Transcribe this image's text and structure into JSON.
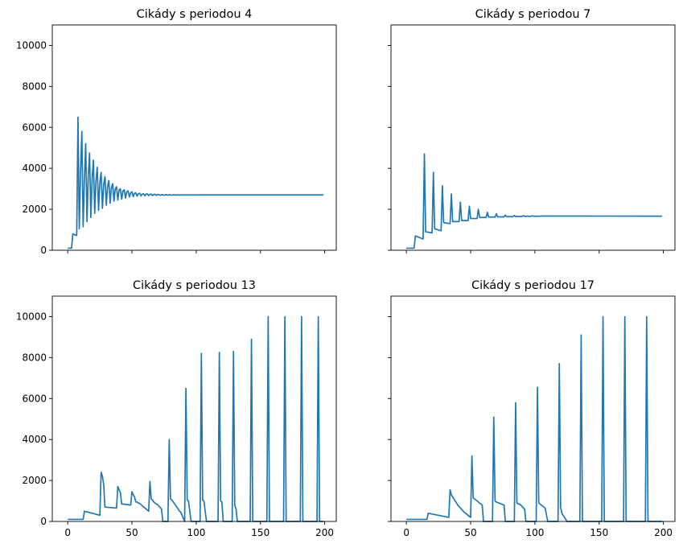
{
  "chart_data": [
    {
      "type": "line",
      "title": "Cikády s periodou 4",
      "xlim": [
        -12,
        209
      ],
      "ylim": [
        0,
        11000
      ],
      "xticks": [
        0,
        50,
        100,
        150,
        200
      ],
      "yticks": [
        0,
        2000,
        4000,
        6000,
        8000,
        10000
      ],
      "xtick_labels": [],
      "ytick_labels": [
        "0",
        "2000",
        "4000",
        "6000",
        "8000",
        "10000"
      ],
      "color": "#1f77b4",
      "series": [
        {
          "x": [
            0,
            3,
            4,
            7,
            8,
            9,
            10,
            11,
            12,
            13,
            14,
            15,
            16,
            17,
            18,
            19,
            20,
            21,
            22,
            23,
            24,
            25,
            26,
            27,
            28,
            29,
            30,
            31,
            32,
            33,
            34,
            35,
            36,
            37,
            38,
            39,
            40,
            41,
            42,
            43,
            44,
            45,
            46,
            47,
            48,
            49,
            50,
            51,
            52,
            53,
            54,
            55,
            56,
            57,
            58,
            59,
            60,
            61,
            62,
            63,
            64,
            65,
            66,
            67,
            68,
            69,
            70,
            71,
            72,
            73,
            74,
            75,
            76,
            77,
            78,
            79,
            80,
            81,
            82,
            83,
            84,
            85,
            86,
            87,
            88,
            89,
            90,
            91,
            92,
            93,
            94,
            95,
            96,
            97,
            98,
            99,
            100,
            199
          ],
          "y": [
            100,
            100,
            800,
            720,
            6500,
            1050,
            3800,
            5800,
            1150,
            3500,
            5200,
            1400,
            3600,
            4750,
            1600,
            3500,
            4400,
            1800,
            3400,
            4050,
            1950,
            3300,
            3800,
            2050,
            3200,
            3600,
            2200,
            3100,
            3400,
            2300,
            3050,
            3250,
            2400,
            3000,
            3100,
            2450,
            2950,
            3000,
            2500,
            2900,
            2950,
            2550,
            2850,
            2900,
            2600,
            2800,
            2850,
            2620,
            2780,
            2800,
            2640,
            2760,
            2780,
            2650,
            2740,
            2760,
            2660,
            2740,
            2750,
            2670,
            2730,
            2740,
            2670,
            2720,
            2730,
            2680,
            2720,
            2720,
            2680,
            2710,
            2715,
            2685,
            2710,
            2710,
            2690,
            2705,
            2705,
            2690,
            2705,
            2705,
            2695,
            2700,
            2700,
            2695,
            2700,
            2700,
            2697,
            2700,
            2700,
            2698,
            2700,
            2700,
            2698,
            2700,
            2700,
            2699,
            2700,
            2700
          ]
        }
      ]
    },
    {
      "type": "line",
      "title": "Cikády s periodou 7",
      "xlim": [
        -12,
        209
      ],
      "ylim": [
        0,
        11000
      ],
      "xticks": [
        0,
        50,
        100,
        150,
        200
      ],
      "yticks": [
        0,
        2000,
        4000,
        6000,
        8000,
        10000
      ],
      "xtick_labels": [],
      "ytick_labels": [],
      "color": "#1f77b4",
      "series": [
        {
          "x": [
            0,
            6,
            7,
            13,
            14,
            15,
            20,
            21,
            22,
            27,
            28,
            29,
            34,
            35,
            36,
            41,
            42,
            43,
            48,
            49,
            50,
            55,
            56,
            57,
            62,
            63,
            64,
            69,
            70,
            71,
            76,
            77,
            78,
            83,
            84,
            85,
            90,
            91,
            92,
            97,
            98,
            99,
            104,
            105,
            199
          ],
          "y": [
            100,
            100,
            700,
            550,
            4700,
            900,
            850,
            3800,
            1050,
            950,
            3150,
            1350,
            1300,
            2750,
            1400,
            1400,
            2350,
            1450,
            1450,
            2150,
            1550,
            1550,
            2000,
            1600,
            1600,
            1850,
            1620,
            1620,
            1780,
            1630,
            1630,
            1720,
            1640,
            1640,
            1700,
            1650,
            1650,
            1690,
            1660,
            1660,
            1680,
            1660,
            1665,
            1670,
            1665
          ]
        }
      ]
    },
    {
      "type": "line",
      "title": "Cikády s periodou 13",
      "xlim": [
        -12,
        209
      ],
      "ylim": [
        0,
        11000
      ],
      "xticks": [
        0,
        50,
        100,
        150,
        200
      ],
      "yticks": [
        0,
        2000,
        4000,
        6000,
        8000,
        10000
      ],
      "xtick_labels": [
        "0",
        "50",
        "100",
        "150",
        "200"
      ],
      "ytick_labels": [
        "0",
        "2000",
        "4000",
        "6000",
        "8000",
        "10000"
      ],
      "color": "#1f77b4",
      "series": [
        {
          "x": [
            0,
            12,
            13,
            25,
            26,
            27,
            28,
            29,
            38,
            39,
            40,
            41,
            42,
            43,
            49,
            50,
            51,
            52,
            53,
            54,
            55,
            56,
            63,
            64,
            65,
            66,
            67,
            68,
            69,
            70,
            73,
            74,
            76,
            78,
            79,
            80,
            81,
            85,
            86,
            87,
            88,
            91,
            92,
            93,
            94,
            96,
            99,
            100,
            103,
            104,
            105,
            106,
            108,
            117,
            118,
            119,
            120,
            121,
            128,
            129,
            130,
            131,
            132,
            142,
            143,
            144,
            147,
            155,
            156,
            157,
            168,
            169,
            170,
            181,
            182,
            183,
            194,
            195,
            196,
            199
          ],
          "y": [
            100,
            100,
            500,
            300,
            2400,
            2200,
            1800,
            700,
            650,
            1700,
            1550,
            1400,
            850,
            850,
            800,
            1450,
            1300,
            1200,
            950,
            950,
            900,
            880,
            500,
            1950,
            1100,
            1050,
            950,
            900,
            850,
            820,
            600,
            0,
            0,
            0,
            4000,
            1100,
            1050,
            700,
            600,
            500,
            450,
            0,
            6500,
            1050,
            1000,
            0,
            0,
            0,
            0,
            8200,
            1050,
            1000,
            0,
            0,
            8250,
            1000,
            950,
            0,
            0,
            8300,
            800,
            600,
            0,
            0,
            8900,
            0,
            0,
            0,
            10000,
            0,
            0,
            10000,
            0,
            0,
            10000,
            0,
            0,
            10000,
            0,
            0
          ]
        }
      ]
    },
    {
      "type": "line",
      "title": "Cikády s periodou 17",
      "xlim": [
        -12,
        209
      ],
      "ylim": [
        0,
        11000
      ],
      "xticks": [
        0,
        50,
        100,
        150,
        200
      ],
      "yticks": [
        0,
        2000,
        4000,
        6000,
        8000,
        10000
      ],
      "xtick_labels": [
        "0",
        "50",
        "100",
        "150",
        "200"
      ],
      "ytick_labels": [],
      "color": "#1f77b4",
      "series": [
        {
          "x": [
            0,
            16,
            17,
            33,
            34,
            35,
            40,
            45,
            50,
            51,
            52,
            53,
            59,
            60,
            67,
            68,
            69,
            70,
            76,
            77,
            84,
            85,
            86,
            87,
            88,
            89,
            92,
            93,
            101,
            102,
            103,
            104,
            108,
            110,
            118,
            119,
            120,
            121,
            125,
            127,
            135,
            136,
            137,
            139,
            144,
            152,
            153,
            154,
            169,
            170,
            171,
            186,
            187,
            188,
            199
          ],
          "y": [
            100,
            100,
            400,
            200,
            1550,
            1300,
            800,
            450,
            200,
            3200,
            1150,
            1100,
            800,
            0,
            0,
            5100,
            1000,
            950,
            800,
            0,
            0,
            5800,
            900,
            850,
            850,
            800,
            600,
            0,
            0,
            6550,
            900,
            850,
            650,
            0,
            0,
            7700,
            700,
            400,
            0,
            0,
            0,
            9100,
            0,
            0,
            0,
            0,
            10000,
            0,
            0,
            10000,
            0,
            0,
            10000,
            0,
            0
          ]
        }
      ]
    }
  ]
}
